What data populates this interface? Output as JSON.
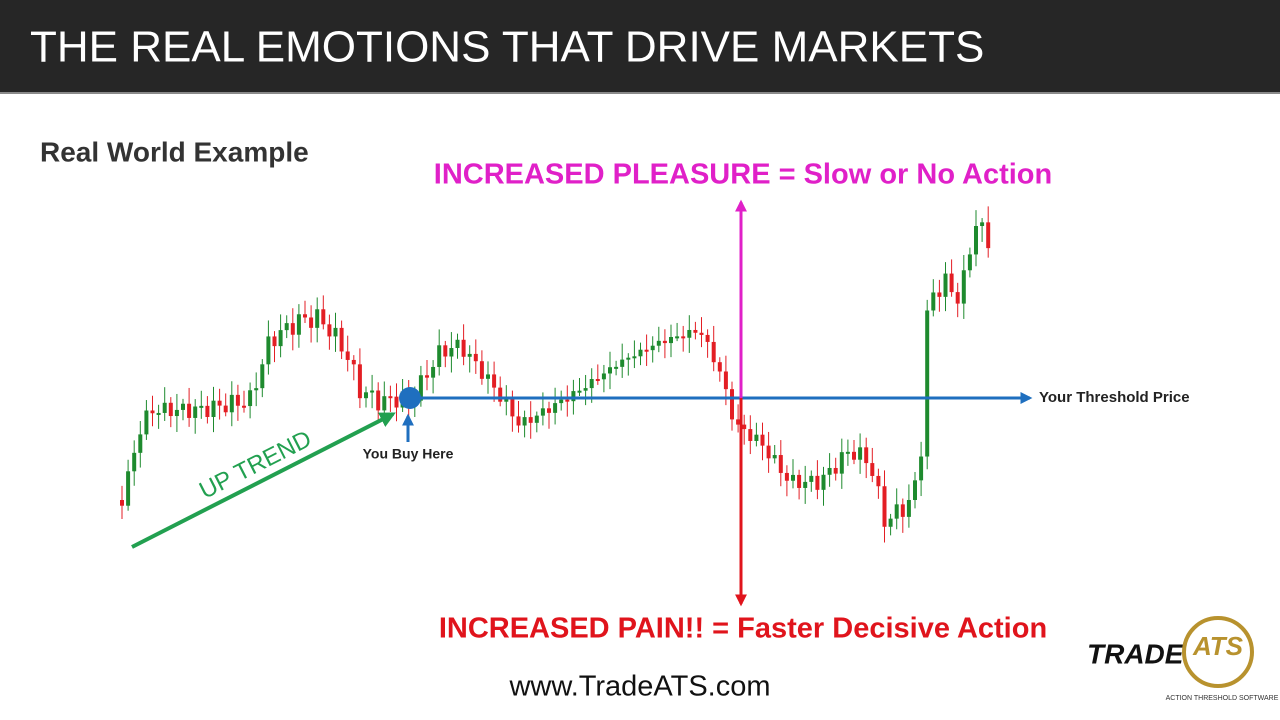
{
  "header": {
    "title": "THE REAL EMOTIONS THAT DRIVE MARKETS"
  },
  "subtitle": "Real World Example",
  "annotations": {
    "pleasure": "INCREASED PLEASURE = Slow or No Action",
    "pain": "INCREASED PAIN!! = Faster Decisive Action",
    "up_trend": "UP TREND",
    "buy": "You Buy Here",
    "threshold": "Your Threshold Price"
  },
  "footer": {
    "url": "www.TradeATS.com",
    "logo_text": "TRADE",
    "logo_mark": "ATS",
    "logo_tagline": "ACTION THRESHOLD SOFTWARE"
  }
}
